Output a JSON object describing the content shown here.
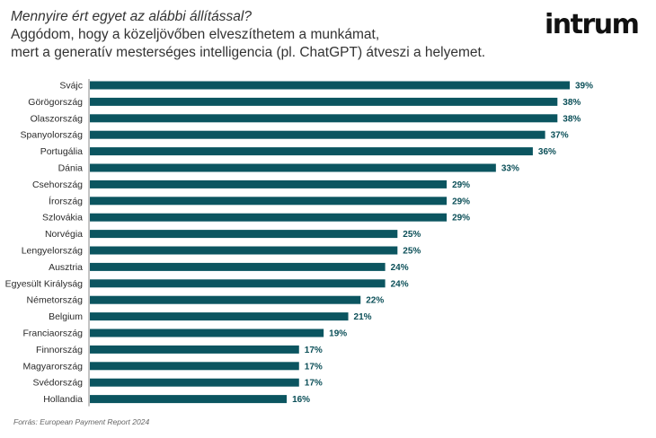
{
  "question": "Mennyire ért egyet az alábbi állítással?",
  "statement_line1": "Aggódom, hogy a közeljövőben elveszíthetem a munkámat,",
  "statement_line2": "mert a generatív mesterséges intelligencia (pl. ChatGPT) átveszi a helyemet.",
  "logo_text": "intrum",
  "source": "Forrás: European Payment Report 2024",
  "colors": {
    "bar": "#0b5560",
    "value_label": "#0b4f58"
  },
  "chart_data": {
    "type": "bar",
    "orientation": "horizontal",
    "value_suffix": "%",
    "categories": [
      "Svájc",
      "Görögország",
      "Olaszország",
      "Spanyolország",
      "Portugália",
      "Dánia",
      "Csehország",
      "Írország",
      "Szlovákia",
      "Norvégia",
      "Lengyelország",
      "Ausztria",
      "Egyesült Királyság",
      "Németország",
      "Belgium",
      "Franciaország",
      "Finnország",
      "Magyarország",
      "Svédország",
      "Hollandia"
    ],
    "values": [
      39,
      38,
      38,
      37,
      36,
      33,
      29,
      29,
      29,
      25,
      25,
      24,
      24,
      22,
      21,
      19,
      17,
      17,
      17,
      16
    ],
    "xlim": [
      0,
      39
    ],
    "grid": false,
    "legend": "none"
  }
}
